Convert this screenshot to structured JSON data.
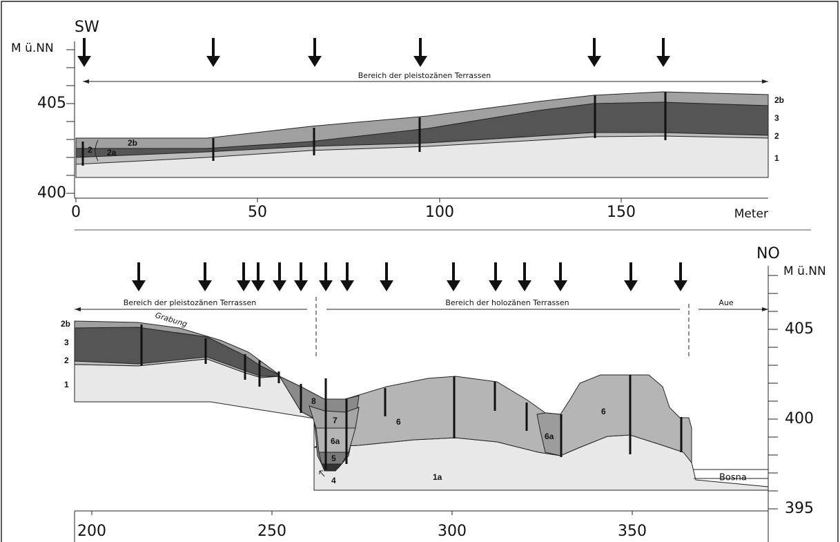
{
  "top": {
    "direction": "SW",
    "y_unit": "M ü.NN",
    "yticks": [
      405,
      400
    ],
    "xticks": [
      0,
      50,
      100,
      150
    ],
    "x_unit": "Meter",
    "range_label": "Bereich der pleistozänen Terrassen",
    "layer_labels": [
      "2b",
      "3",
      "2",
      "1"
    ],
    "inner_labels": [
      "2",
      "2a",
      "2b"
    ]
  },
  "bottom": {
    "direction": "NO",
    "y_unit": "M ü.NN",
    "yticks": [
      405,
      400,
      395
    ],
    "xticks": [
      200,
      250,
      300,
      350
    ],
    "range_labels": [
      "Bereich der pleistozänen Terrassen",
      "Bereich der holozänen Terrassen",
      "Aue"
    ],
    "annotations": [
      "Grabung",
      "Bosna"
    ],
    "layer_labels": [
      "2b",
      "3",
      "2",
      "1"
    ],
    "inner_labels": [
      "8",
      "7",
      "6a",
      "5",
      "4",
      "6",
      "1a",
      "6a",
      "6"
    ]
  }
}
